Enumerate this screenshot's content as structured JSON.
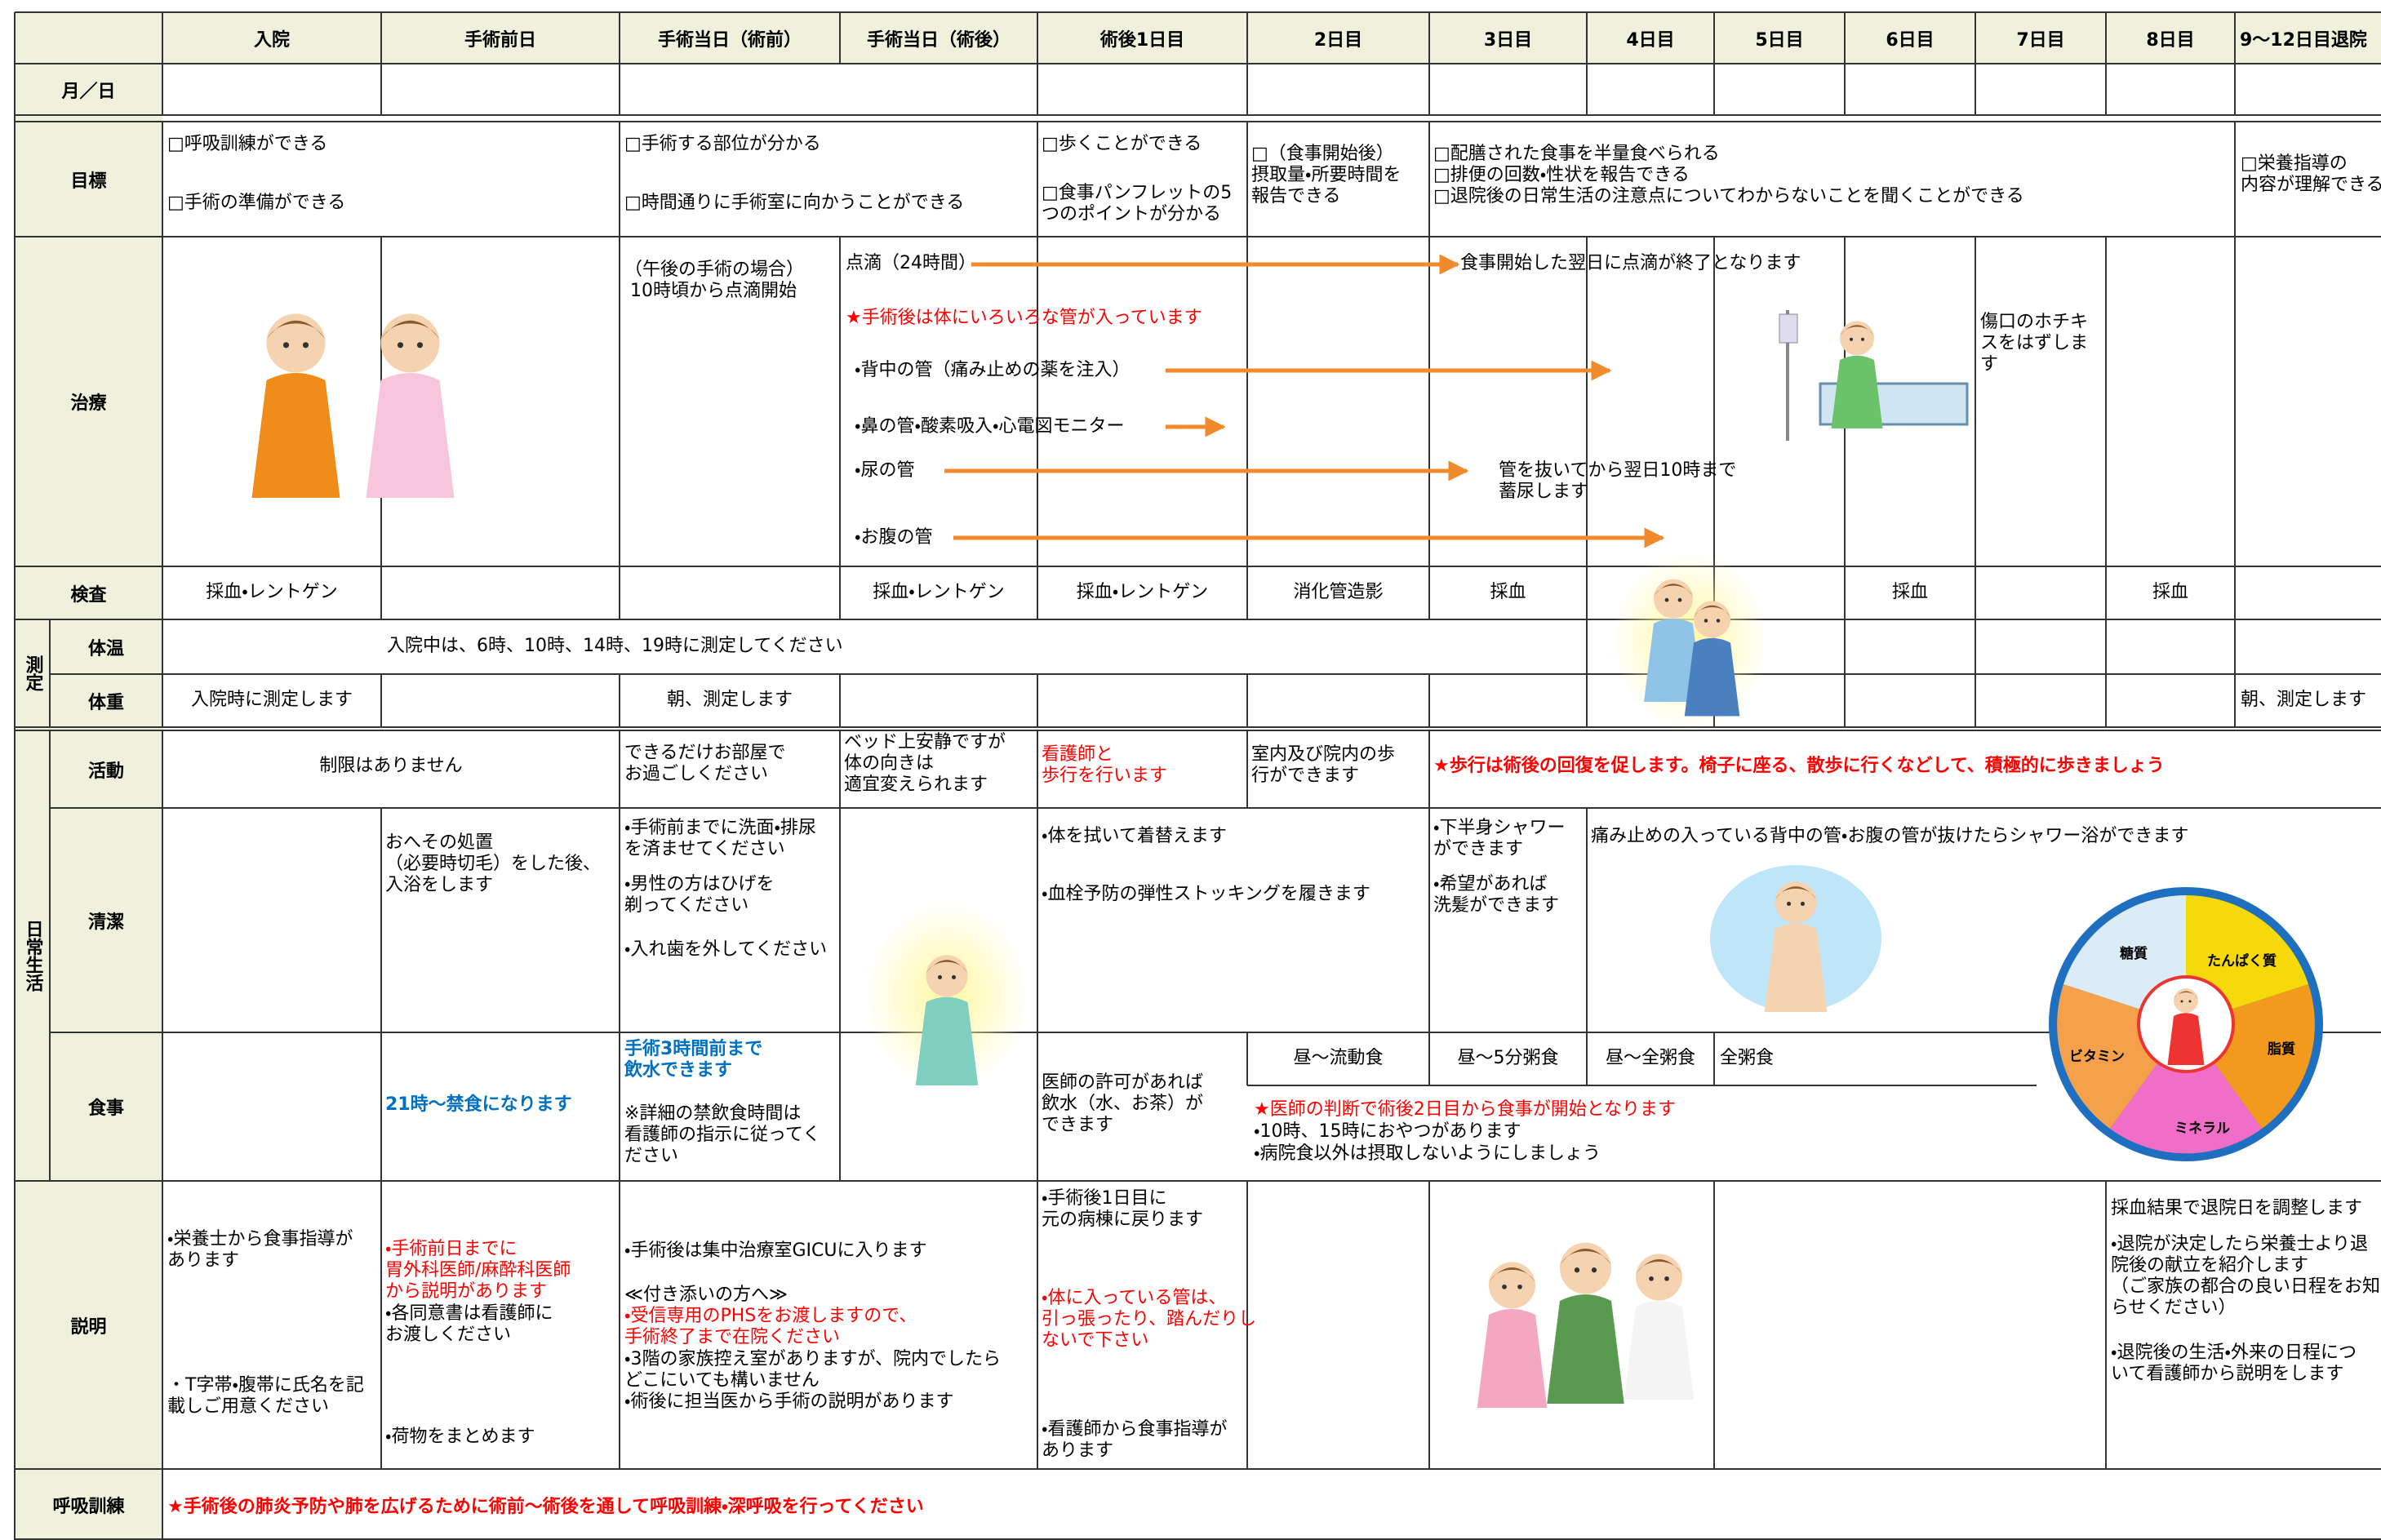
{
  "header": {
    "columns": [
      "入院",
      "手術前日",
      "手術当日（術前）",
      "手術当日（術後）",
      "術後1日目",
      "2日目",
      "3日目",
      "4日目",
      "5日目",
      "6日目",
      "7日目",
      "8日目",
      "9～12日目退院"
    ]
  },
  "groups": {
    "measurement": "測定",
    "daily_life": "日常生活"
  },
  "rows": {
    "date": {
      "label": "月／日"
    },
    "goals": {
      "label": "目標",
      "items": [
        "□呼吸訓練ができる",
        "□手術の準備ができる",
        "□手術する部位が分かる",
        "□時間通りに手術室に向かうことができる",
        "□歩くことができる",
        "□食事パンフレットの5\nつのポイントが分かる",
        "□（食事開始後）\n摂取量・所要時間を\n報告できる",
        "□配膳された食事を半量食べられる\n□排便の回数・性状を報告できる\n□退院後の日常生活の注意点についてわからないことを聞くことができる",
        "□栄養指導の\n内容が理解できる"
      ]
    },
    "treatment": {
      "label": "治療",
      "items": [
        "（午後の手術の場合）\n 10時頃から点滴開始",
        "点滴（24時間）",
        "食事開始した翌日に点滴が終了となります",
        "★手術後は体にいろいろな管が入っています",
        "・背中の管（痛み止めの薬を注入）",
        "・鼻の管・酸素吸入・心電図モニター",
        "・尿の管",
        "管を抜いてから翌日10時まで\n蓄尿します",
        "・お腹の管",
        "傷口のホチキ\nスをはずしま\nす"
      ]
    },
    "tests": {
      "label": "検査",
      "items": [
        "採血・レントゲン",
        "採血・レントゲン",
        "採血・レントゲン",
        "消化管造影",
        "採血",
        "採血",
        "採血"
      ]
    },
    "temperature": {
      "label": "体温",
      "items": [
        "入院中は、6時、10時、14時、19時に測定してください"
      ]
    },
    "weight": {
      "label": "体重",
      "items": [
        "入院時に測定します",
        "朝、測定します",
        "朝、測定します"
      ]
    },
    "activity": {
      "label": "活動",
      "items": [
        "制限はありません",
        "できるだけお部屋で\nお過ごしください",
        "ベッド上安静ですが\n体の向きは\n適宜変えられます",
        "看護師と\n歩行を行います",
        "室内及び院内の歩\n行ができます",
        "★歩行は術後の回復を促します。椅子に座る、散歩に行くなどして、積極的に歩きましょう"
      ]
    },
    "hygiene": {
      "label": "清潔",
      "items": [
        "おへその処置\n（必要時切毛）をした後、\n入浴をします",
        "・手術前までに洗面・排尿\nを済ませてください",
        "・男性の方はひげを\n剃ってください",
        "・入れ歯を外してください",
        "・体を拭いて着替えます",
        "・血栓予防の弾性ストッキングを履きます",
        "・下半身シャワー\nができます",
        "・希望があれば\n洗髪ができます",
        "痛み止めの入っている背中の管・お腹の管が抜けたらシャワー浴ができます"
      ]
    },
    "meals": {
      "label": "食事",
      "items": [
        "21時～禁食になります",
        "手術3時間前まで\n飲水できます",
        "※詳細の禁飲食時間は\n看護師の指示に従ってく\nださい",
        "医師の許可があれば\n飲水（水、お茶）が\nできます",
        "昼～流動食",
        "昼～5分粥食",
        "昼～全粥食",
        "全粥食",
        "★医師の判断で術後2日目から食事が開始となります",
        "・10時、15時におやつがあります",
        "・病院食以外は摂取しないようにしましょう"
      ]
    },
    "explanation": {
      "label": "説明",
      "items": [
        "・栄養士から食事指導が\nあります",
        "・T字帯・腹帯に氏名を記\n載しご用意ください",
        "・手術前日までに\n胃外科医師/麻酔科医師\nから説明があります",
        "・各同意書は看護師に\nお渡しください",
        "・荷物をまとめます",
        "・手術後は集中治療室GICUに入ります",
        "≪付き添いの方へ≫",
        "・受信専用のPHSをお渡しますので、\n手術終了まで在院ください",
        "・3階の家族控え室がありますが、院内でしたら\nどこにいても構いません\n・術後に担当医から手術の説明があります",
        "・手術後1日目に\n元の病棟に戻ります",
        "・体に入っている管は、\n引っ張ったり、踏んだりし\nないで下さい",
        "・看護師から食事指導が\nあります",
        "採血結果で退院日を調整します",
        "・退院が決定したら栄養士より退\n院後の献立を紹介します\n（ご家族の都合の良い日程をお知\nらせください）",
        "・退院後の生活・外来の日程につ\nいて看護師から説明をします"
      ]
    },
    "breathing": {
      "label": "呼吸訓練",
      "items": [
        "★手術後の肺炎予防や肺を広げるために術前～術後を通して呼吸訓練・深呼吸を行ってください"
      ]
    }
  },
  "nutrition_chart": {
    "labels": [
      "糖質",
      "たんぱく質",
      "脂質",
      "ビタミン",
      "ミネラル"
    ]
  }
}
